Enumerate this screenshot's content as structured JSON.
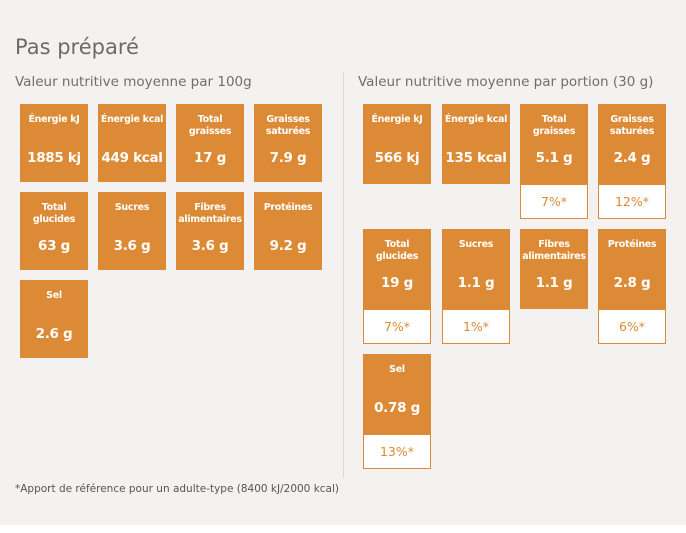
{
  "title": "Pas préparé",
  "left": {
    "heading": "Valeur nutritive moyenne par  100g",
    "tiles": [
      {
        "label": "Énergie kJ",
        "value": "1885 kj"
      },
      {
        "label": "Énergie kcal",
        "value": "449 kcal"
      },
      {
        "label": "Total graisses",
        "value": "17 g"
      },
      {
        "label": "Graisses saturées",
        "value": "7.9 g"
      },
      {
        "label": "Total glucides",
        "value": "63 g"
      },
      {
        "label": "Sucres",
        "value": "3.6 g"
      },
      {
        "label": "Fibres alimentaires",
        "value": "3.6 g"
      },
      {
        "label": "Protéines",
        "value": "9.2 g"
      },
      {
        "label": "Sel",
        "value": "2.6 g"
      }
    ]
  },
  "right": {
    "heading": "Valeur nutritive moyenne par portion (30 g)",
    "tiles": [
      {
        "label": "Énergie kJ",
        "value": "566 kj"
      },
      {
        "label": "Énergie kcal",
        "value": "135 kcal"
      },
      {
        "label": "Total graisses",
        "value": "5.1 g",
        "pct": "7%*"
      },
      {
        "label": "Graisses saturées",
        "value": "2.4 g",
        "pct": "12%*"
      },
      {
        "label": "Total glucides",
        "value": "19 g",
        "pct": "7%*"
      },
      {
        "label": "Sucres",
        "value": "1.1 g",
        "pct": "1%*"
      },
      {
        "label": "Fibres alimentaires",
        "value": "1.1 g"
      },
      {
        "label": "Protéines",
        "value": "2.8 g",
        "pct": "6%*"
      },
      {
        "label": "Sel",
        "value": "0.78 g",
        "pct": "13%*"
      }
    ]
  },
  "footnote": "*Apport de référence pour un adulte-type (8400 kJ/2000 kcal)",
  "colors": {
    "accent": "#dc8a35",
    "background": "#f3f2f0"
  }
}
